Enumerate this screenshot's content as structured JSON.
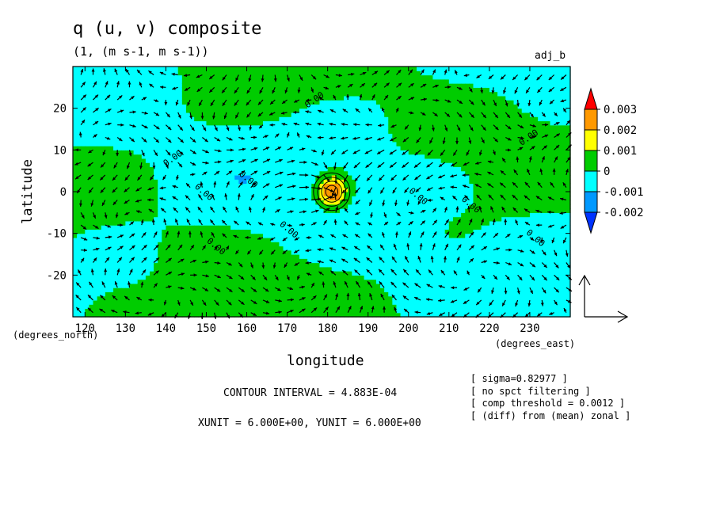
{
  "header": {
    "title": "q (u, v) composite",
    "subtitle": "(1, (m s-1, m s-1))",
    "corner_label": "adj_b"
  },
  "footer": {
    "contour_interval": "CONTOUR INTERVAL = 4.883E-04",
    "units": "XUNIT = 6.000E+00, YUNIT = 6.000E+00",
    "notes": [
      "[ sigma=0.82977 ]",
      "[ no spct filtering ]",
      "[ comp threshold = 0.0012 ]",
      "[ (diff) from (mean) zonal ]"
    ]
  },
  "chart_data": {
    "type": "heatmap",
    "title": "q (u, v) composite",
    "subtitle": "(1, (m s-1, m s-1))",
    "xlabel": "longitude",
    "ylabel": "latitude",
    "x_unit_label": "(degrees_east)",
    "y_unit_label": "(degrees_north)",
    "xlim": [
      117,
      240
    ],
    "ylim": [
      -30,
      30
    ],
    "xticks": [
      120,
      130,
      140,
      150,
      160,
      170,
      180,
      190,
      200,
      210,
      220,
      230
    ],
    "yticks": [
      -20,
      -10,
      0,
      10,
      20
    ],
    "contour_label": "0.00",
    "colorbar": {
      "levels": [
        "0.003",
        "0.002",
        "0.001",
        "0",
        "-0.001",
        "-0.002"
      ],
      "colors": [
        "#ff0000",
        "#ff9900",
        "#ffff00",
        "#00cc00",
        "#00ffff",
        "#0099ff",
        "#0033ff"
      ]
    },
    "composite_center": {
      "lon": 181,
      "lat": 0
    },
    "reference_vector": {
      "label": "XUNIT = 6.000E+00, YUNIT = 6.000E+00"
    }
  }
}
